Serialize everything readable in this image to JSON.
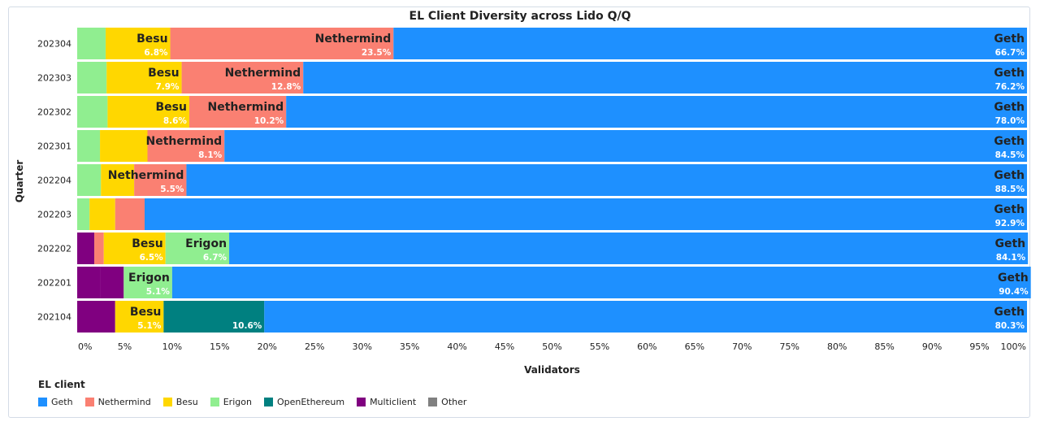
{
  "chart_data": {
    "type": "bar",
    "orientation": "horizontal",
    "stacked": true,
    "title": "EL Client Diversity across Lido Q/Q",
    "xlabel": "Validators",
    "ylabel": "Quarter",
    "xlim": [
      0,
      100
    ],
    "x_tick_labels": [
      "0%",
      "5%",
      "10%",
      "15%",
      "20%",
      "25%",
      "30%",
      "35%",
      "40%",
      "45%",
      "50%",
      "55%",
      "60%",
      "65%",
      "70%",
      "75%",
      "80%",
      "85%",
      "90%",
      "95%",
      "100%"
    ],
    "categories": [
      "202304",
      "202303",
      "202302",
      "202301",
      "202204",
      "202203",
      "202202",
      "202201",
      "202104"
    ],
    "legend_title": "EL client",
    "legend_placement": "bottom-left",
    "series": [
      {
        "name": "Multiclient",
        "color": "#800080",
        "values": [
          0,
          0,
          0,
          0,
          0,
          0,
          1.8,
          2.4,
          4.0
        ]
      },
      {
        "name": "Nethermind",
        "color": "#fa8072",
        "values": [
          0,
          0,
          0,
          0,
          0,
          0,
          1.0,
          0,
          0
        ]
      },
      {
        "name": "Erigon",
        "color": "#90ee90",
        "values": [
          3.0,
          3.1,
          3.2,
          2.4,
          2.5,
          1.3,
          0,
          0,
          0
        ]
      },
      {
        "name": "OpenEthereum",
        "color": "#008080",
        "values": [
          0,
          0,
          0,
          0,
          0,
          0,
          0,
          0,
          0
        ]
      },
      {
        "name": "Besu",
        "color": "#ffd700",
        "values": [
          6.8,
          7.9,
          8.6,
          5.0,
          3.5,
          2.7,
          6.5,
          0,
          5.1
        ]
      },
      {
        "name": "Nethermind",
        "color": "#fa8072",
        "values": [
          23.5,
          12.8,
          10.2,
          8.1,
          5.5,
          3.1,
          0,
          0,
          0
        ]
      },
      {
        "name": "Multiclient",
        "color": "#800080",
        "values": [
          0,
          0,
          0,
          0,
          0,
          0,
          0,
          2.5,
          0
        ]
      },
      {
        "name": "Erigon",
        "color": "#90ee90",
        "values": [
          0,
          0,
          0,
          0,
          0,
          0,
          6.7,
          5.1,
          0
        ]
      },
      {
        "name": "OpenEthereum",
        "color": "#008080",
        "values": [
          0,
          0,
          0,
          0,
          0,
          0,
          0,
          0,
          10.6
        ]
      },
      {
        "name": "Geth",
        "color": "#1e90ff",
        "values": [
          66.7,
          76.2,
          78.0,
          84.5,
          88.5,
          92.9,
          84.1,
          90.4,
          80.3
        ]
      }
    ],
    "segment_labels": [
      [
        {
          "client": "Besu",
          "value": "6.8%",
          "series": 4
        },
        {
          "client": "Nethermind",
          "value": "23.5%",
          "series": 5
        },
        {
          "client": "Geth",
          "value": "66.7%",
          "series": 9
        }
      ],
      [
        {
          "client": "Besu",
          "value": "7.9%",
          "series": 4
        },
        {
          "client": "Nethermind",
          "value": "12.8%",
          "series": 5
        },
        {
          "client": "Geth",
          "value": "76.2%",
          "series": 9
        }
      ],
      [
        {
          "client": "Besu",
          "value": "8.6%",
          "series": 4
        },
        {
          "client": "Nethermind",
          "value": "10.2%",
          "series": 5
        },
        {
          "client": "Geth",
          "value": "78.0%",
          "series": 9
        }
      ],
      [
        {
          "client": "Nethermind",
          "value": "8.1%",
          "series": 5
        },
        {
          "client": "Geth",
          "value": "84.5%",
          "series": 9
        }
      ],
      [
        {
          "client": "Nethermind",
          "value": "5.5%",
          "series": 5
        },
        {
          "client": "Geth",
          "value": "88.5%",
          "series": 9
        }
      ],
      [
        {
          "client": "Geth",
          "value": "92.9%",
          "series": 9
        }
      ],
      [
        {
          "client": "Besu",
          "value": "6.5%",
          "series": 4
        },
        {
          "client": "Erigon",
          "value": "6.7%",
          "series": 7
        },
        {
          "client": "Geth",
          "value": "84.1%",
          "series": 9
        }
      ],
      [
        {
          "client": "Erigon",
          "value": "5.1%",
          "series": 7
        },
        {
          "client": "Geth",
          "value": "90.4%",
          "series": 9
        }
      ],
      [
        {
          "client": "Besu",
          "value": "5.1%",
          "series": 4
        },
        {
          "client": "",
          "value": "10.6%",
          "series": 8
        },
        {
          "client": "Geth",
          "value": "80.3%",
          "series": 9
        }
      ]
    ],
    "legend": [
      {
        "name": "Geth",
        "color": "#1e90ff"
      },
      {
        "name": "Nethermind",
        "color": "#fa8072"
      },
      {
        "name": "Besu",
        "color": "#ffd700"
      },
      {
        "name": "Erigon",
        "color": "#90ee90"
      },
      {
        "name": "OpenEthereum",
        "color": "#008080"
      },
      {
        "name": "Multiclient",
        "color": "#800080"
      },
      {
        "name": "Other",
        "color": "#808080"
      }
    ]
  }
}
